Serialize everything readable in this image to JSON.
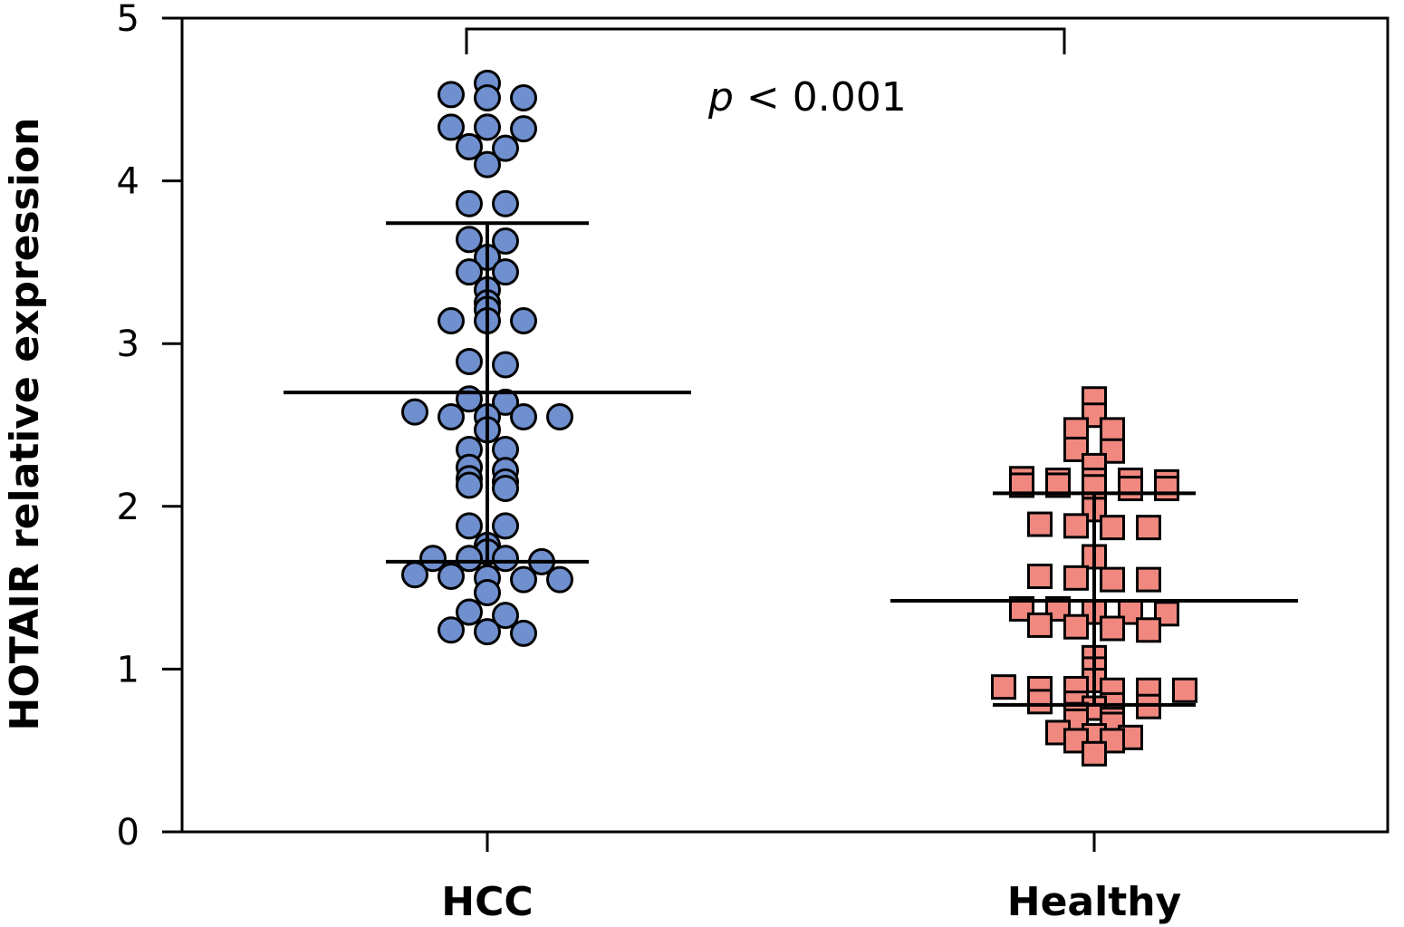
{
  "chart_data": {
    "type": "scatter",
    "ylabel": "HOTAIR relative expression",
    "xlabel": "",
    "ylim": [
      0,
      5
    ],
    "yticks": [
      "0",
      "1",
      "2",
      "3",
      "4",
      "5"
    ],
    "categories": [
      "HCC",
      "Healthy"
    ],
    "annotation": {
      "p_symbol": "p",
      "text": " < 0.001"
    },
    "grid": false,
    "series": [
      {
        "category": "HCC",
        "marker": "circle",
        "color": "#6f8fce",
        "mean": 2.7,
        "sd_upper": 3.74,
        "sd_lower": 1.66,
        "values": [
          4.6,
          4.53,
          4.51,
          4.51,
          4.33,
          4.33,
          4.32,
          4.21,
          4.2,
          4.1,
          3.86,
          3.86,
          3.64,
          3.63,
          3.53,
          3.44,
          3.44,
          3.33,
          3.25,
          3.21,
          3.14,
          3.14,
          3.14,
          2.89,
          2.87,
          2.66,
          2.64,
          2.58,
          2.55,
          2.55,
          2.55,
          2.55,
          2.47,
          2.35,
          2.35,
          2.24,
          2.22,
          2.17,
          2.15,
          2.13,
          2.11,
          1.88,
          1.88,
          1.76,
          1.72,
          1.68,
          1.68,
          1.68,
          1.66,
          1.58,
          1.57,
          1.56,
          1.55,
          1.55,
          1.47,
          1.35,
          1.33,
          1.24,
          1.23,
          1.22
        ]
      },
      {
        "category": "Healthy",
        "marker": "square",
        "color": "#f08880",
        "mean": 1.42,
        "sd_upper": 2.08,
        "sd_lower": 0.78,
        "values": [
          2.66,
          2.56,
          2.47,
          2.47,
          2.35,
          2.34,
          2.25,
          2.17,
          2.16,
          2.16,
          2.16,
          2.15,
          2.13,
          2.13,
          2.12,
          2.11,
          2.11,
          1.98,
          1.89,
          1.88,
          1.87,
          1.87,
          1.69,
          1.57,
          1.56,
          1.55,
          1.55,
          1.37,
          1.37,
          1.35,
          1.35,
          1.34,
          1.27,
          1.26,
          1.25,
          1.24,
          1.07,
          1.0,
          0.93,
          0.89,
          0.88,
          0.88,
          0.87,
          0.87,
          0.87,
          0.8,
          0.79,
          0.78,
          0.77,
          0.76,
          0.72,
          0.69,
          0.68,
          0.66,
          0.61,
          0.59,
          0.58,
          0.56,
          0.56,
          0.48
        ]
      }
    ]
  }
}
